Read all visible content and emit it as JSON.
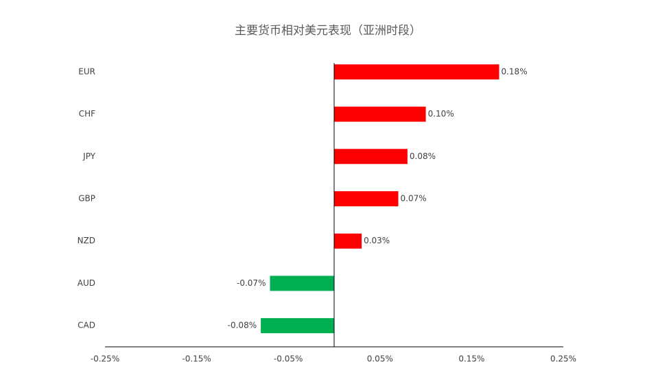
{
  "chart_data": {
    "type": "barh",
    "title": "主要货币相对美元表现（亚洲时段）",
    "categories": [
      "EUR",
      "CHF",
      "JPY",
      "GBP",
      "NZD",
      "AUD",
      "CAD"
    ],
    "values": [
      0.18,
      0.1,
      0.08,
      0.07,
      0.03,
      -0.07,
      -0.08
    ],
    "value_labels": [
      "0.18%",
      "0.10%",
      "0.08%",
      "0.07%",
      "0.03%",
      "-0.07%",
      "-0.08%"
    ],
    "colors": [
      "#ff0000",
      "#ff0000",
      "#ff0000",
      "#ff0000",
      "#ff0000",
      "#00b050",
      "#00b050"
    ],
    "xlim": [
      -0.25,
      0.25
    ],
    "xticks": [
      {
        "value": -0.25,
        "label": "-0.25%"
      },
      {
        "value": -0.15,
        "label": "-0.15%"
      },
      {
        "value": -0.05,
        "label": "-0.05%"
      },
      {
        "value": 0.05,
        "label": "0.05%"
      },
      {
        "value": 0.15,
        "label": "0.15%"
      },
      {
        "value": 0.25,
        "label": "0.25%"
      }
    ]
  }
}
